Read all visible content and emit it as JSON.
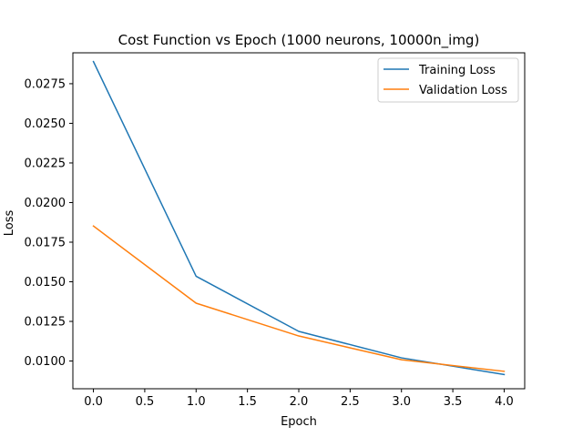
{
  "chart_data": {
    "type": "line",
    "title": "Cost Function vs Epoch (1000 neurons, 10000n_img)",
    "xlabel": "Epoch",
    "ylabel": "Loss",
    "x": [
      0,
      1,
      2,
      3,
      4
    ],
    "xlim": [
      -0.2,
      4.2
    ],
    "ylim": [
      0.00825,
      0.02945
    ],
    "xticks": [
      0.0,
      0.5,
      1.0,
      1.5,
      2.0,
      2.5,
      3.0,
      3.5,
      4.0
    ],
    "xtick_labels": [
      "0.0",
      "0.5",
      "1.0",
      "1.5",
      "2.0",
      "2.5",
      "3.0",
      "3.5",
      "4.0"
    ],
    "yticks": [
      0.01,
      0.0125,
      0.015,
      0.0175,
      0.02,
      0.0225,
      0.025,
      0.0275
    ],
    "ytick_labels": [
      "0.0100",
      "0.0125",
      "0.0150",
      "0.0175",
      "0.0200",
      "0.0225",
      "0.0250",
      "0.0275"
    ],
    "grid": false,
    "legend_position": "top-right",
    "series": [
      {
        "name": "Training Loss",
        "color": "#1f77b4",
        "values": [
          0.0289,
          0.01535,
          0.01187,
          0.0102,
          0.00915
        ]
      },
      {
        "name": "Validation Loss",
        "color": "#ff7f0e",
        "values": [
          0.01852,
          0.01365,
          0.01158,
          0.01008,
          0.00935
        ]
      }
    ]
  }
}
